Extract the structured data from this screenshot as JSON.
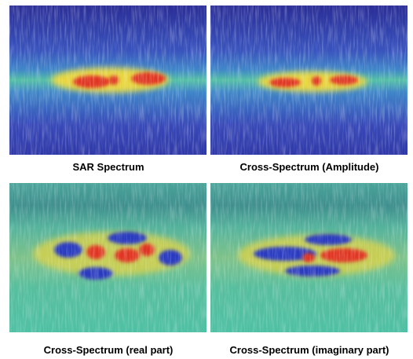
{
  "panels": [
    {
      "caption": "SAR Spectrum"
    },
    {
      "caption": "Cross-Spectrum (Amplitude)"
    },
    {
      "caption": "Cross-Spectrum (real part)"
    },
    {
      "caption": "Cross-Spectrum (imaginary part)"
    }
  ]
}
